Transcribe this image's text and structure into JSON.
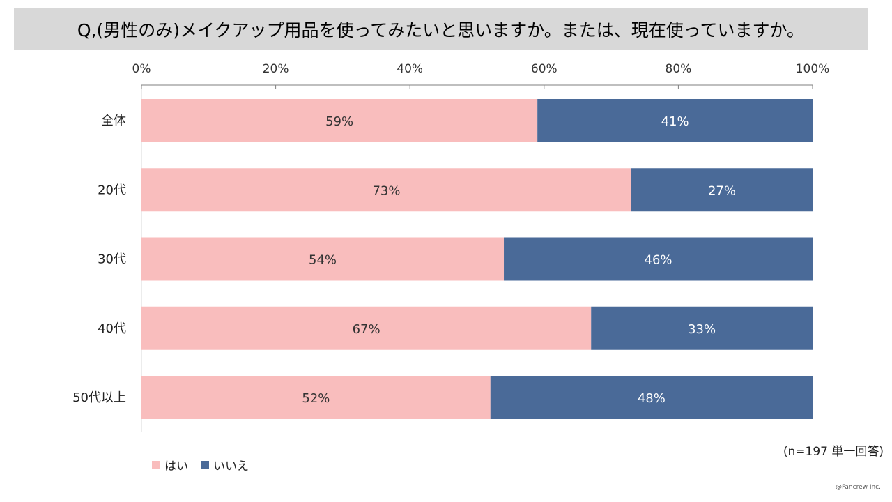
{
  "title": "Q,(男性のみ)メイクアップ用品を使ってみたいと思いますか。または、現在使っていますか。",
  "note": "(n=197 単一回答)",
  "credit": "@Fancrew Inc.",
  "colors": {
    "yes": "#f9bdbd",
    "no": "#4a6a98",
    "yes_label": "#333333",
    "no_label": "#ffffff",
    "axis": "#7f7f7f",
    "title_bg": "#d8d8d8"
  },
  "chart_data": {
    "type": "bar",
    "orientation": "horizontal",
    "stacked": true,
    "categories": [
      "全体",
      "20代",
      "30代",
      "40代",
      "50代以上"
    ],
    "series": [
      {
        "name": "はい",
        "values": [
          59,
          73,
          54,
          67,
          52
        ],
        "labels": [
          "59%",
          "73%",
          "54%",
          "67%",
          "52%"
        ]
      },
      {
        "name": "いいえ",
        "values": [
          41,
          27,
          46,
          33,
          48
        ],
        "labels": [
          "41%",
          "27%",
          "46%",
          "33%",
          "48%"
        ]
      }
    ],
    "xlim": [
      0,
      100
    ],
    "x_ticks": [
      0,
      20,
      40,
      60,
      80,
      100
    ],
    "x_tick_labels": [
      "0%",
      "20%",
      "40%",
      "60%",
      "80%",
      "100%"
    ],
    "xaxis_position": "top",
    "grid": false,
    "legend_position": "bottom-left"
  }
}
